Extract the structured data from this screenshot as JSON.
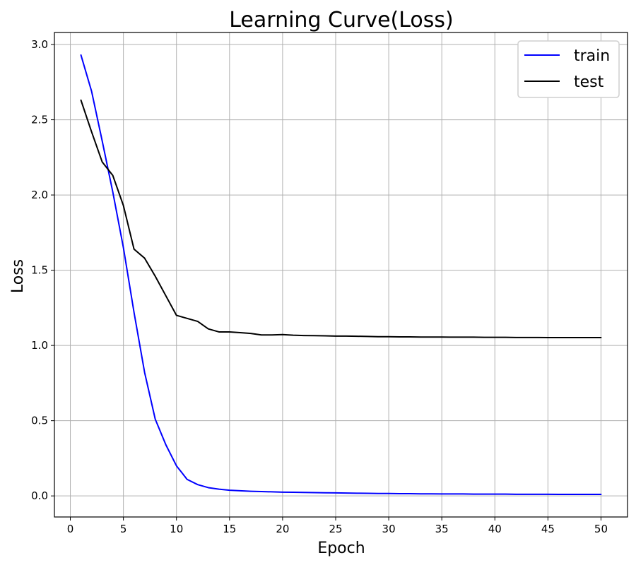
{
  "chart_data": {
    "type": "line",
    "title": "Learning Curve(Loss)",
    "xlabel": "Epoch",
    "ylabel": "Loss",
    "xlim": [
      -1.5,
      52.5
    ],
    "ylim": [
      -0.14,
      3.08
    ],
    "xticks": [
      0,
      5,
      10,
      15,
      20,
      25,
      30,
      35,
      40,
      45,
      50
    ],
    "yticks": [
      0.0,
      0.5,
      1.0,
      1.5,
      2.0,
      2.5,
      3.0
    ],
    "xtick_labels": [
      "0",
      "5",
      "10",
      "15",
      "20",
      "25",
      "30",
      "35",
      "40",
      "45",
      "50"
    ],
    "ytick_labels": [
      "0.0",
      "0.5",
      "1.0",
      "1.5",
      "2.0",
      "2.5",
      "3.0"
    ],
    "grid": true,
    "legend": "top-right",
    "x": [
      1,
      2,
      3,
      4,
      5,
      6,
      7,
      8,
      9,
      10,
      11,
      12,
      13,
      14,
      15,
      16,
      17,
      18,
      19,
      20,
      21,
      22,
      23,
      24,
      25,
      26,
      27,
      28,
      29,
      30,
      31,
      32,
      33,
      34,
      35,
      36,
      37,
      38,
      39,
      40,
      41,
      42,
      43,
      44,
      45,
      46,
      47,
      48,
      49,
      50
    ],
    "series": [
      {
        "name": "train",
        "color": "#0000ff",
        "values": [
          2.93,
          2.69,
          2.36,
          2.02,
          1.65,
          1.22,
          0.82,
          0.51,
          0.34,
          0.2,
          0.11,
          0.075,
          0.055,
          0.045,
          0.038,
          0.034,
          0.031,
          0.029,
          0.027,
          0.025,
          0.024,
          0.023,
          0.022,
          0.021,
          0.02,
          0.019,
          0.018,
          0.017,
          0.016,
          0.016,
          0.015,
          0.015,
          0.014,
          0.014,
          0.013,
          0.013,
          0.013,
          0.012,
          0.012,
          0.012,
          0.012,
          0.011,
          0.011,
          0.011,
          0.011,
          0.01,
          0.01,
          0.01,
          0.01,
          0.01
        ]
      },
      {
        "name": "test",
        "color": "#000000",
        "values": [
          2.63,
          2.42,
          2.22,
          2.13,
          1.93,
          1.64,
          1.58,
          1.46,
          1.33,
          1.2,
          1.18,
          1.16,
          1.11,
          1.09,
          1.09,
          1.085,
          1.08,
          1.07,
          1.07,
          1.072,
          1.068,
          1.066,
          1.065,
          1.064,
          1.062,
          1.062,
          1.061,
          1.06,
          1.058,
          1.058,
          1.057,
          1.057,
          1.056,
          1.056,
          1.056,
          1.055,
          1.055,
          1.055,
          1.054,
          1.054,
          1.054,
          1.053,
          1.053,
          1.053,
          1.052,
          1.052,
          1.052,
          1.052,
          1.052,
          1.052
        ]
      }
    ]
  }
}
